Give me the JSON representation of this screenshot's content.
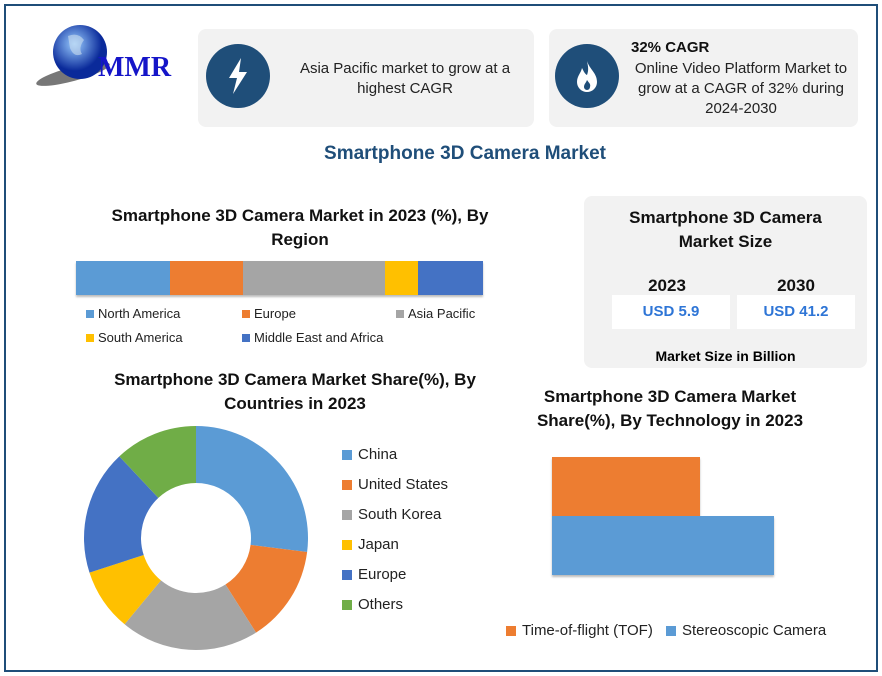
{
  "logo": {
    "text": "MMR"
  },
  "cards": [
    {
      "icon": "lightning-icon",
      "text": "Asia Pacific market to grow at a highest  CAGR"
    },
    {
      "icon": "flame-icon",
      "heading": "32% CAGR",
      "text": "Online Video Platform Market to grow at a CAGR of 32% during 2024-2030"
    }
  ],
  "main_title": "Smartphone  3D Camera Market",
  "market_size": {
    "title": "Smartphone 3D Camera Market Size",
    "years": [
      "2023",
      "2030"
    ],
    "values": [
      "USD 5.9",
      "USD 41.2"
    ],
    "footer": "Market Size in Billion"
  },
  "colors": {
    "blue": "#5b9bd5",
    "orange": "#ed7d31",
    "gray": "#a5a5a5",
    "yellow": "#ffc000",
    "darkblue": "#4472c4",
    "green": "#70ad47",
    "navy": "#1f4e79"
  },
  "chart_data": [
    {
      "type": "bar",
      "stacked": true,
      "title": "Smartphone 3D Camera Market in 2023 (%), By Region",
      "categories": [
        "North America",
        "Europe",
        "Asia Pacific",
        "South America",
        "Middle East and Africa"
      ],
      "values": [
        23,
        18,
        35,
        8,
        16
      ],
      "colors": [
        "#5b9bd5",
        "#ed7d31",
        "#a5a5a5",
        "#ffc000",
        "#4472c4"
      ]
    },
    {
      "type": "pie",
      "donut": true,
      "title": "Smartphone 3D Camera Market Share(%), By Countries in 2023",
      "categories": [
        "China",
        "United States",
        "South Korea",
        "Japan",
        "Europe",
        "Others"
      ],
      "values": [
        27,
        14,
        20,
        9,
        18,
        12
      ],
      "colors": [
        "#5b9bd5",
        "#ed7d31",
        "#a5a5a5",
        "#ffc000",
        "#4472c4",
        "#70ad47"
      ]
    },
    {
      "type": "bar",
      "orientation": "horizontal",
      "title": "Smartphone 3D Camera Market Share(%), By Technology in 2023",
      "categories": [
        "Time-of-flight (TOF)",
        "Stereoscopic Camera"
      ],
      "values": [
        40,
        60
      ],
      "colors": [
        "#ed7d31",
        "#5b9bd5"
      ]
    }
  ]
}
